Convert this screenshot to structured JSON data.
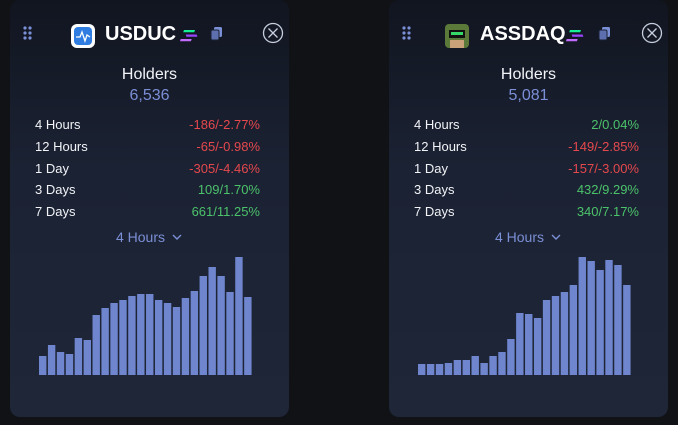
{
  "cards": [
    {
      "name": "USDUC",
      "holders_label": "Holders",
      "holders": "6,536",
      "dropdown": "4 Hours",
      "rows": [
        {
          "label": "4 Hours",
          "change": "-186/-2.77%",
          "color": "#e5484d"
        },
        {
          "label": "12 Hours",
          "change": "-65/-0.98%",
          "color": "#e5484d"
        },
        {
          "label": "1 Day",
          "change": "-305/-4.46%",
          "color": "#e5484d"
        },
        {
          "label": "3 Days",
          "change": "109/1.70%",
          "color": "#4cc26b"
        },
        {
          "label": "7 Days",
          "change": "661/11.25%",
          "color": "#4cc26b"
        }
      ],
      "bars": [
        19,
        30,
        23,
        21,
        37,
        35,
        60,
        67,
        72,
        75,
        79,
        81,
        81,
        75,
        72,
        68,
        77,
        84,
        99,
        108,
        99,
        83,
        118,
        78
      ],
      "bar_color": "#6f86cf"
    },
    {
      "name": "ASSDAQ",
      "holders_label": "Holders",
      "holders": "5,081",
      "dropdown": "4 Hours",
      "rows": [
        {
          "label": "4 Hours",
          "change": "2/0.04%",
          "color": "#4cc26b"
        },
        {
          "label": "12 Hours",
          "change": "-149/-2.85%",
          "color": "#e5484d"
        },
        {
          "label": "1 Day",
          "change": "-157/-3.00%",
          "color": "#e5484d"
        },
        {
          "label": "3 Days",
          "change": "432/9.29%",
          "color": "#4cc26b"
        },
        {
          "label": "7 Days",
          "change": "340/7.17%",
          "color": "#4cc26b"
        }
      ],
      "bars": [
        11,
        11,
        11,
        12,
        15,
        15,
        19,
        12,
        19,
        23,
        36,
        62,
        61,
        57,
        75,
        79,
        83,
        90,
        118,
        114,
        105,
        115,
        110,
        90
      ],
      "bar_color": "#6f86cf"
    }
  ]
}
